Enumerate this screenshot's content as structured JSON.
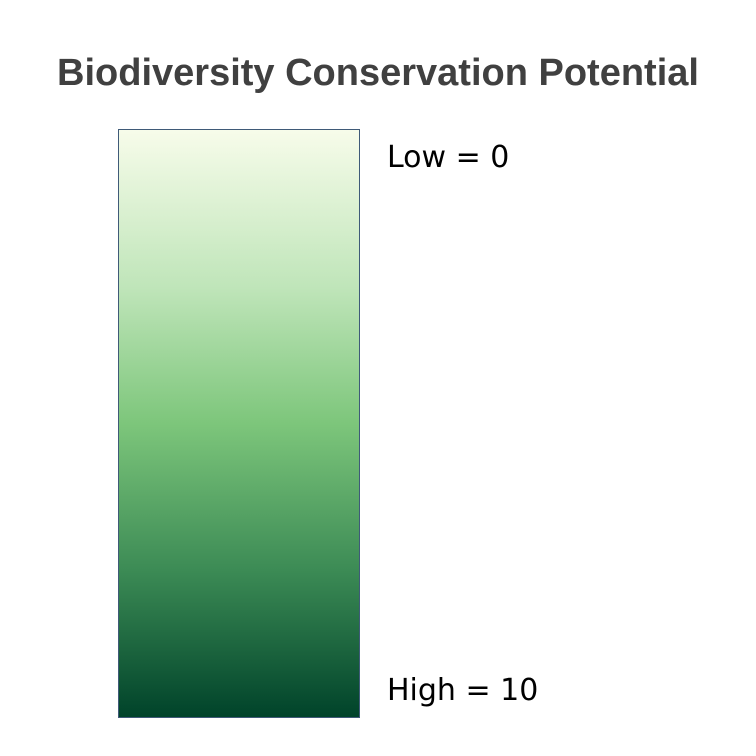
{
  "title": "Biodiversity Conservation Potential",
  "legend": {
    "low_label": "Low = 0",
    "high_label": "High = 10",
    "range": [
      0,
      10
    ],
    "colors": {
      "low": "#f7fcea",
      "mid_low": "#bfe5b9",
      "mid": "#7dc67b",
      "mid_high": "#3c8b55",
      "high": "#00432a"
    }
  }
}
